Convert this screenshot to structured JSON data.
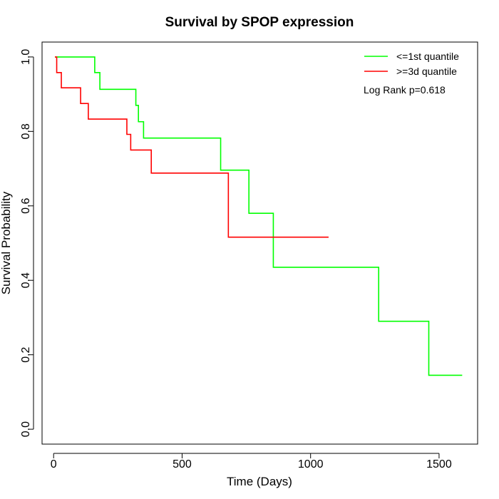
{
  "chart_data": {
    "type": "line",
    "subtype": "kaplan-meier-step",
    "title": "Survival by SPOP expression",
    "xlabel": "Time (Days)",
    "ylabel": "Survival Probability",
    "xlim": [
      -45,
      1650
    ],
    "ylim": [
      -0.04,
      1.04
    ],
    "x_ticks": [
      0,
      500,
      1000,
      1500
    ],
    "x_tick_labels": [
      "0",
      "500",
      "1000",
      "1500"
    ],
    "y_ticks": [
      0.0,
      0.2,
      0.4,
      0.6,
      0.8,
      1.0
    ],
    "y_tick_labels": [
      "0.0",
      "0.2",
      "0.4",
      "0.6",
      "0.8",
      "1.0"
    ],
    "grid": false,
    "legend_position": "top-right",
    "annotation": "Log Rank p=0.618",
    "series": [
      {
        "name": "<=1st quantile",
        "color": "#00ff00",
        "x": [
          5,
          160,
          180,
          320,
          330,
          350,
          650,
          760,
          855,
          1265,
          1460,
          1590
        ],
        "y": [
          1.0,
          0.958,
          0.913,
          0.87,
          0.826,
          0.782,
          0.696,
          0.58,
          0.435,
          0.29,
          0.145,
          0.145
        ]
      },
      {
        "name": ">=3d quantile",
        "color": "#ff0000",
        "x": [
          5,
          12,
          30,
          105,
          135,
          285,
          300,
          380,
          680,
          1070
        ],
        "y": [
          1.0,
          0.958,
          0.917,
          0.875,
          0.833,
          0.792,
          0.75,
          0.688,
          0.516,
          0.516
        ]
      }
    ]
  }
}
